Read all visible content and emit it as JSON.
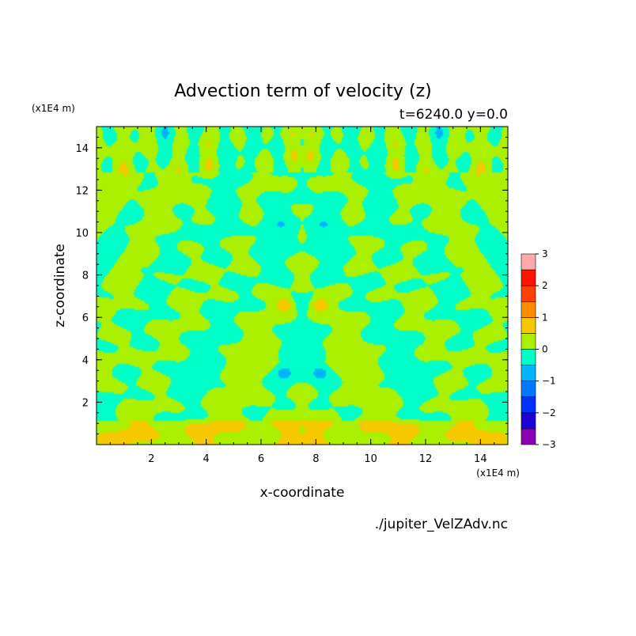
{
  "chart_data": {
    "type": "heatmap",
    "title": "Advection term of velocity (z)",
    "subtitle": "t=6240.0 y=0.0",
    "xlabel": "x-coordinate",
    "ylabel": "z-coordinate",
    "x_unit": "(x1E4 m)",
    "y_unit": "(x1E4 m)",
    "xlim": [
      0,
      15
    ],
    "ylim": [
      0,
      15
    ],
    "xticks": [
      2,
      4,
      6,
      8,
      10,
      12,
      14
    ],
    "yticks": [
      2,
      4,
      6,
      8,
      10,
      12,
      14
    ],
    "colorbar": {
      "levels": [
        -3,
        -2.5,
        -2,
        -1.5,
        -1,
        -0.5,
        0,
        0.5,
        1,
        1.5,
        2,
        2.5,
        3
      ],
      "tick_labels": [
        "-3",
        "-2",
        "-1",
        "0",
        "1",
        "2",
        "3"
      ],
      "colors": [
        "#8a00b4",
        "#1c00d6",
        "#0032ff",
        "#0078ff",
        "#00b4ff",
        "#00ffc8",
        "#aaf000",
        "#f5c800",
        "#ff8c00",
        "#ff4000",
        "#ff1400",
        "#ffaaaa"
      ]
    },
    "field_range": [
      -1.5,
      1.5
    ],
    "notes": "Bilaterally symmetric pattern about x=7.5; field mostly between -0.5 and 0.5 with small positive patches near (7,6.6),(8.3,6.6) and negative patches near (7,3.4),(8.3,3.4)."
  },
  "source_file": "./jupiter_VelZAdv.nc",
  "colors": {
    "background": "#ffffff",
    "near_zero_negative": "#00ffc8",
    "near_zero_positive": "#aaf000"
  }
}
